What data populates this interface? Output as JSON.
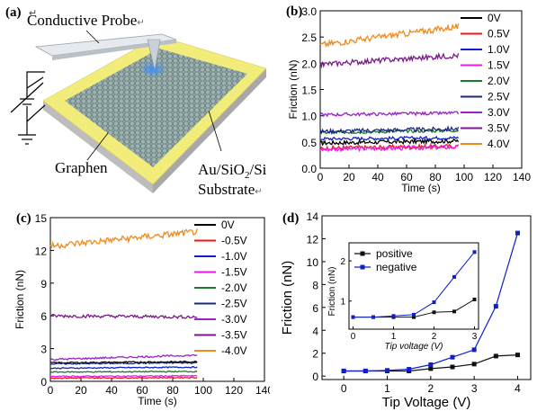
{
  "panel_a": {
    "letter": "(a)",
    "suffix_a": "↵",
    "probe_label": "Conductive Probe",
    "probe_suffix": "↵",
    "graphene_label": "Graphen",
    "substrate_line1": "Au/SiO",
    "substrate_sub": "2",
    "substrate_line1b": "/Si",
    "substrate_line2": "Substrate",
    "substrate_suffix": "↵",
    "colors": {
      "substrate_frame": "#f2ec7a",
      "slab_side": "#c8c8c8",
      "graphene": "#8fa5a5",
      "probe": "#d8dde3",
      "tip_glow": "#2a7fff"
    }
  },
  "chart_data": [
    {
      "id": "b",
      "letter": "(b)",
      "type": "line",
      "xlabel": "Time (s)",
      "ylabel": "Friction (nN)",
      "xlim": [
        0,
        140
      ],
      "ylim": [
        0,
        3.0
      ],
      "xticks": [
        0,
        20,
        40,
        60,
        80,
        100,
        120,
        140
      ],
      "yticks": [
        0.0,
        0.5,
        1.0,
        1.5,
        2.0,
        2.5,
        3.0
      ],
      "ytick_labels": [
        "0.0",
        "0.5",
        "1.0",
        "1.5",
        "2.0",
        "2.5",
        "3.0"
      ],
      "grid": false,
      "legend_position": "right",
      "x_range": [
        0,
        96
      ],
      "series": [
        {
          "name": "0V",
          "color": "#000000",
          "start": 0.48,
          "end": 0.52,
          "noise": 0.04
        },
        {
          "name": "0.5V",
          "color": "#e8191c",
          "start": 0.38,
          "end": 0.42,
          "noise": 0.04
        },
        {
          "name": "1.0V",
          "color": "#1020c8",
          "start": 0.56,
          "end": 0.58,
          "noise": 0.03
        },
        {
          "name": "1.5V",
          "color": "#e81ee8",
          "start": 0.36,
          "end": 0.4,
          "noise": 0.04
        },
        {
          "name": "2.0V",
          "color": "#1a7a2a",
          "start": 0.68,
          "end": 0.72,
          "noise": 0.03
        },
        {
          "name": "2.5V",
          "color": "#1c2880",
          "start": 0.7,
          "end": 0.75,
          "noise": 0.04
        },
        {
          "name": "3.0V",
          "color": "#9a22c8",
          "start": 1.02,
          "end": 1.05,
          "noise": 0.03
        },
        {
          "name": "3.5V",
          "color": "#7a1a8a",
          "start": 1.98,
          "end": 2.15,
          "noise": 0.05
        },
        {
          "name": "4.0V",
          "color": "#f08a1a",
          "start": 2.35,
          "end": 2.7,
          "noise": 0.06
        }
      ]
    },
    {
      "id": "c",
      "letter": "(c)",
      "type": "line",
      "xlabel": "Time (s)",
      "ylabel": "Friction (nN)",
      "xlim": [
        0,
        140
      ],
      "ylim": [
        0,
        15
      ],
      "xticks": [
        0,
        20,
        40,
        60,
        80,
        100,
        120,
        140
      ],
      "yticks": [
        0,
        3,
        6,
        9,
        12,
        15
      ],
      "ytick_labels": [
        "0",
        "3",
        "6",
        "9",
        "12",
        "15"
      ],
      "grid": false,
      "legend_position": "right",
      "x_range": [
        0,
        96
      ],
      "series": [
        {
          "name": "0V",
          "color": "#000000",
          "start": 1.7,
          "end": 1.8,
          "noise": 0.06
        },
        {
          "name": "-0.5V",
          "color": "#e8191c",
          "start": 0.3,
          "end": 0.35,
          "noise": 0.05
        },
        {
          "name": "-1.0V",
          "color": "#1020c8",
          "start": 1.2,
          "end": 1.3,
          "noise": 0.05
        },
        {
          "name": "-1.5V",
          "color": "#e81ee8",
          "start": 0.45,
          "end": 0.5,
          "noise": 0.05
        },
        {
          "name": "-2.0V",
          "color": "#1a7a2a",
          "start": 0.85,
          "end": 0.9,
          "noise": 0.05
        },
        {
          "name": "-2.5V",
          "color": "#1c2880",
          "start": 1.6,
          "end": 1.7,
          "noise": 0.06
        },
        {
          "name": "-3.0V",
          "color": "#9a22c8",
          "start": 2.0,
          "end": 2.4,
          "noise": 0.08
        },
        {
          "name": "-3.5V",
          "color": "#7a1a8a",
          "start": 6.0,
          "end": 5.9,
          "noise": 0.15
        },
        {
          "name": "-4.0V",
          "color": "#f08a1a",
          "start": 12.4,
          "end": 13.7,
          "noise": 0.3
        }
      ]
    },
    {
      "id": "d",
      "letter": "(d)",
      "type": "line",
      "xlabel": "Tip Voltage (V)",
      "ylabel": "Friction (nN)",
      "xlim": [
        -0.5,
        4.3
      ],
      "ylim": [
        -0.3,
        14
      ],
      "xticks": [
        0,
        1,
        2,
        3,
        4
      ],
      "yticks": [
        0,
        2,
        4,
        6,
        8,
        10,
        12,
        14
      ],
      "grid": false,
      "legend_position": "inset top-left",
      "series": [
        {
          "name": "positive",
          "color": "#111111",
          "marker": "square",
          "x": [
            0,
            0.5,
            1.0,
            1.5,
            2.0,
            2.5,
            3.0,
            3.5,
            4.0
          ],
          "y": [
            0.45,
            0.45,
            0.45,
            0.45,
            0.65,
            0.8,
            1.05,
            1.75,
            1.85
          ]
        },
        {
          "name": "negative",
          "color": "#1020c8",
          "marker": "square",
          "x": [
            0,
            0.5,
            1.0,
            1.5,
            2.0,
            2.5,
            3.0,
            3.5,
            4.0
          ],
          "y": [
            0.45,
            0.45,
            0.5,
            0.6,
            1.0,
            1.65,
            2.3,
            6.1,
            12.5
          ]
        }
      ],
      "inset": {
        "xlabel": "Tip voltage  (V)",
        "ylabel": "Friction (nN)",
        "xlim": [
          -0.1,
          3.1
        ],
        "ylim": [
          0.3,
          2.45
        ],
        "xticks": [
          0,
          1,
          2,
          3
        ],
        "yticks": [
          1,
          2
        ],
        "series": [
          {
            "name": "positive",
            "color": "#111111",
            "x": [
              0,
              0.5,
              1.0,
              1.5,
              2.0,
              2.5,
              3.0
            ],
            "y": [
              0.6,
              0.6,
              0.6,
              0.6,
              0.72,
              0.74,
              1.04
            ]
          },
          {
            "name": "negative",
            "color": "#1020c8",
            "x": [
              0,
              0.5,
              1.0,
              1.5,
              2.0,
              2.5,
              3.0
            ],
            "y": [
              0.6,
              0.6,
              0.63,
              0.66,
              0.97,
              1.6,
              2.22
            ]
          }
        ]
      }
    }
  ]
}
